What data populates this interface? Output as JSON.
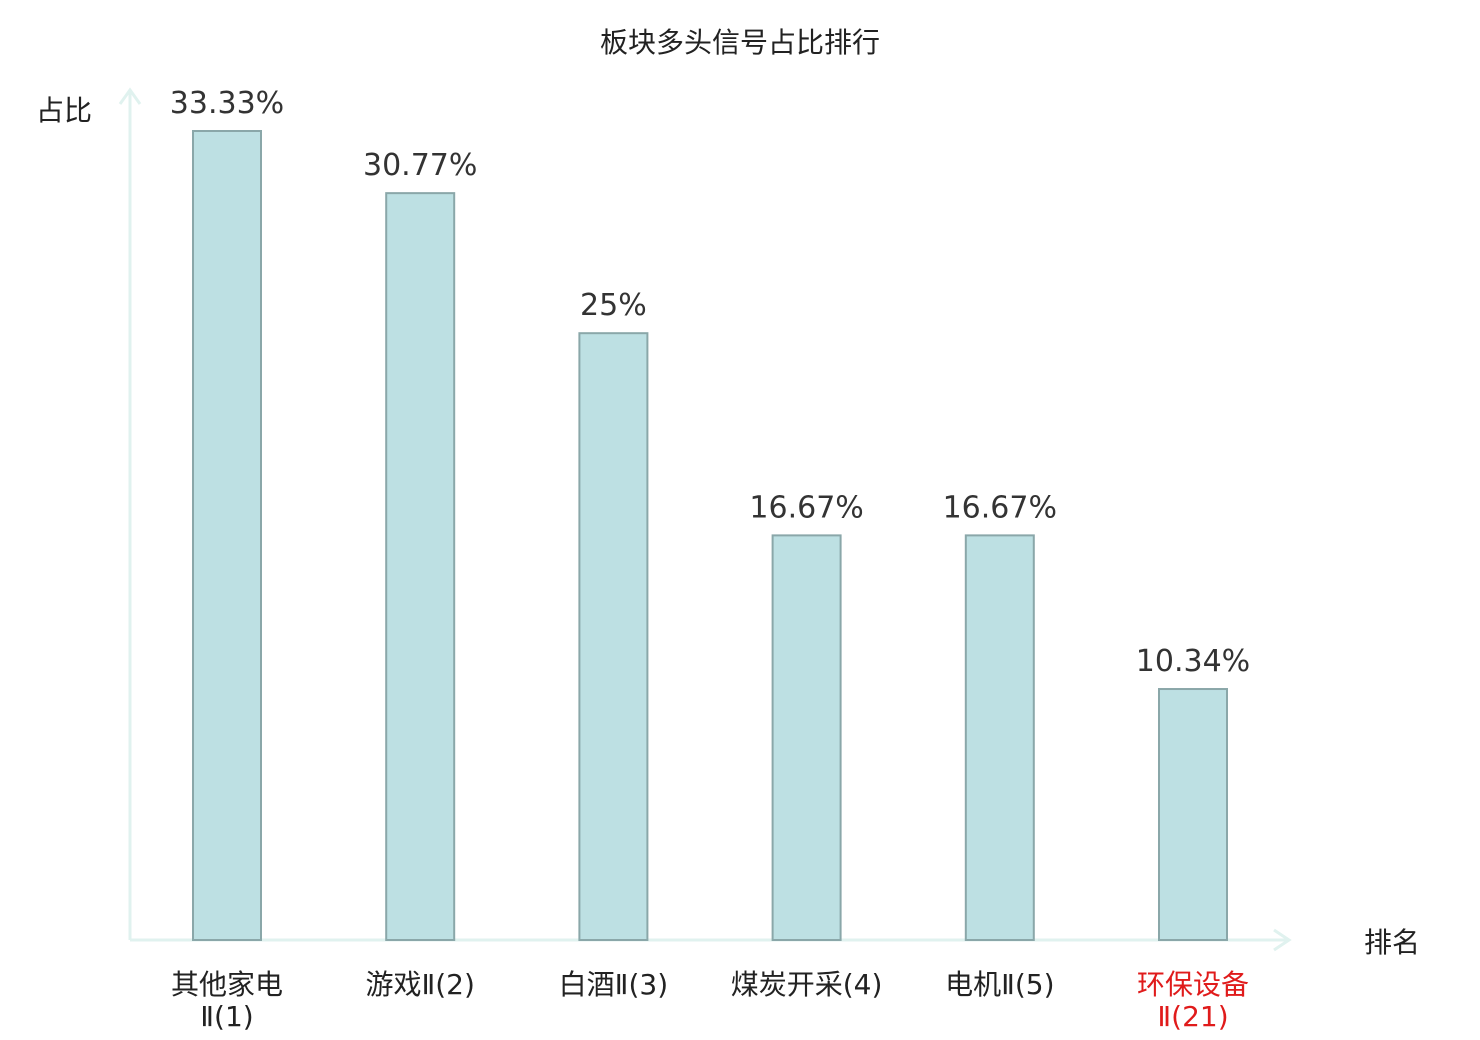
{
  "chart_data": {
    "type": "bar",
    "title": "板块多头信号占比排行",
    "ylabel": "占比",
    "xlabel": "排名",
    "ylim": [
      0,
      33.33
    ],
    "grid": false,
    "legend": "none",
    "categories": [
      [
        "其他家电",
        "Ⅱ(1)"
      ],
      [
        "游戏Ⅱ(2)"
      ],
      [
        "白酒Ⅱ(3)"
      ],
      [
        "煤炭开采(4)"
      ],
      [
        "电机Ⅱ(5)"
      ],
      [
        "环保设备",
        "Ⅱ(21)"
      ]
    ],
    "values": [
      33.33,
      30.77,
      25,
      16.67,
      16.67,
      10.34
    ],
    "value_labels": [
      "33.33%",
      "30.77%",
      "25%",
      "16.67%",
      "16.67%",
      "10.34%"
    ],
    "highlight_index": 5,
    "colors": {
      "bar_fill": "#bde0e3",
      "bar_stroke": "#8aa7a9",
      "axis": "#e0f2ef",
      "label_text": "#222222",
      "value_text": "#333333",
      "highlight_text": "#e01b1b"
    }
  }
}
